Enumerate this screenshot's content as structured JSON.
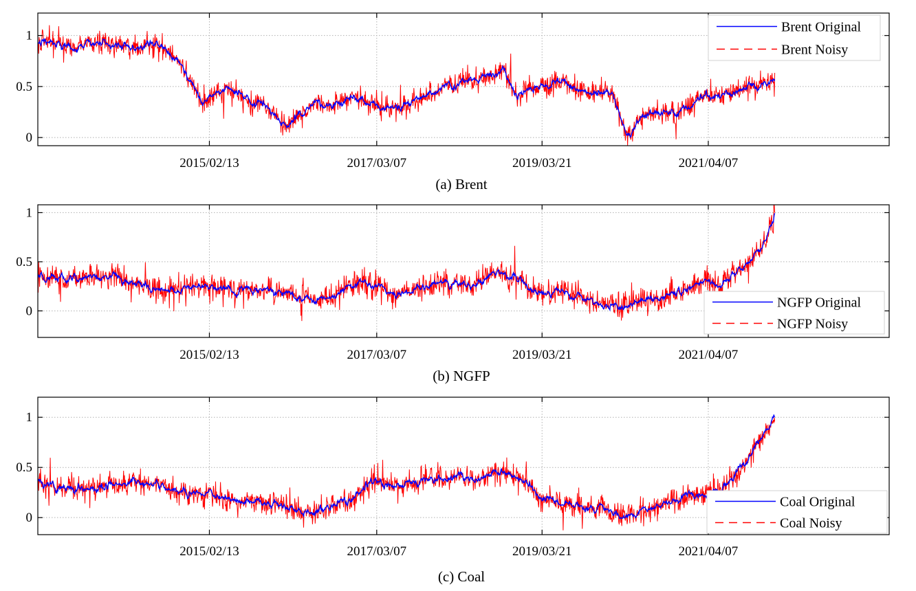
{
  "colors": {
    "original": "#0000ff",
    "noisy": "#ff0000",
    "grid": "#b0b0b0",
    "axes": "#000000",
    "background": "#ffffff"
  },
  "chart_data": [
    {
      "type": "line",
      "caption": "(a) Brent",
      "xlabel": "",
      "ylabel": "",
      "xlim": [
        "2013-01-02",
        "2023-06-30"
      ],
      "xticks": [
        "2015/02/13",
        "2017/03/07",
        "2019/03/21",
        "2021/04/07"
      ],
      "ylim": [
        -0.08,
        1.22
      ],
      "yticks": [
        0,
        0.5,
        1
      ],
      "ytick_labels": [
        "0",
        "0.5",
        "1"
      ],
      "grid": true,
      "legend": {
        "placement": "top-right",
        "entries": [
          "Brent Original",
          "Brent Noisy"
        ]
      },
      "noise_amplitude": 0.09,
      "series": [
        {
          "name": "Brent Original",
          "style": "solid",
          "color": "#0000ff",
          "x": [
            "2013-01-02",
            "2013-03-01",
            "2013-06-01",
            "2013-09-01",
            "2013-12-01",
            "2014-03-01",
            "2014-06-01",
            "2014-08-01",
            "2014-10-01",
            "2014-12-01",
            "2015-01-15",
            "2015-03-01",
            "2015-05-01",
            "2015-07-01",
            "2015-09-01",
            "2015-11-01",
            "2016-01-20",
            "2016-04-01",
            "2016-06-01",
            "2016-09-01",
            "2016-12-01",
            "2017-03-01",
            "2017-06-01",
            "2017-09-01",
            "2017-12-01",
            "2018-03-01",
            "2018-06-01",
            "2018-08-01",
            "2018-10-03",
            "2018-12-01",
            "2019-03-01",
            "2019-06-01",
            "2019-09-01",
            "2019-12-01",
            "2020-02-01",
            "2020-03-01",
            "2020-04-21",
            "2020-06-01",
            "2020-09-01",
            "2020-12-01",
            "2021-03-01",
            "2021-06-01",
            "2021-09-01",
            "2021-11-01",
            "2022-01-31"
          ],
          "y": [
            0.92,
            0.95,
            0.85,
            0.93,
            0.9,
            0.88,
            0.92,
            0.85,
            0.7,
            0.52,
            0.3,
            0.42,
            0.48,
            0.4,
            0.33,
            0.3,
            0.12,
            0.22,
            0.34,
            0.32,
            0.38,
            0.34,
            0.3,
            0.38,
            0.45,
            0.52,
            0.58,
            0.57,
            0.65,
            0.42,
            0.5,
            0.55,
            0.48,
            0.46,
            0.4,
            0.2,
            0.0,
            0.18,
            0.27,
            0.24,
            0.38,
            0.44,
            0.47,
            0.52,
            0.55
          ]
        },
        {
          "name": "Brent Noisy",
          "style": "dashed",
          "color": "#ff0000"
        }
      ]
    },
    {
      "type": "line",
      "caption": "(b) NGFP",
      "xlabel": "",
      "ylabel": "",
      "xlim": [
        "2013-01-02",
        "2023-06-30"
      ],
      "xticks": [
        "2015/02/13",
        "2017/03/07",
        "2019/03/21",
        "2021/04/07"
      ],
      "ylim": [
        -0.27,
        1.08
      ],
      "yticks": [
        0,
        0.5,
        1
      ],
      "ytick_labels": [
        "0",
        "0.5",
        "1"
      ],
      "grid": true,
      "legend": {
        "placement": "bottom-right",
        "entries": [
          "NGFP Original",
          "NGFP Noisy"
        ]
      },
      "noise_amplitude": 0.11,
      "series": [
        {
          "name": "NGFP Original",
          "style": "solid",
          "color": "#0000ff",
          "x": [
            "2013-01-02",
            "2013-06-01",
            "2013-12-01",
            "2014-03-01",
            "2014-06-01",
            "2014-09-01",
            "2015-01-01",
            "2015-06-01",
            "2015-12-01",
            "2016-03-01",
            "2016-06-01",
            "2016-09-01",
            "2016-12-01",
            "2017-03-01",
            "2017-06-01",
            "2017-09-01",
            "2017-12-01",
            "2018-03-01",
            "2018-06-01",
            "2018-09-01",
            "2018-12-01",
            "2019-03-01",
            "2019-06-01",
            "2019-09-01",
            "2019-12-01",
            "2020-03-01",
            "2020-06-01",
            "2020-09-01",
            "2020-12-01",
            "2021-03-01",
            "2021-06-01",
            "2021-09-01",
            "2021-11-01",
            "2021-12-20",
            "2022-01-31"
          ],
          "y": [
            0.35,
            0.33,
            0.36,
            0.32,
            0.25,
            0.18,
            0.25,
            0.22,
            0.2,
            0.14,
            0.12,
            0.16,
            0.28,
            0.3,
            0.18,
            0.22,
            0.3,
            0.25,
            0.3,
            0.4,
            0.32,
            0.16,
            0.18,
            0.15,
            0.08,
            0.04,
            0.08,
            0.14,
            0.2,
            0.3,
            0.28,
            0.4,
            0.55,
            0.7,
            1.0
          ]
        },
        {
          "name": "NGFP Noisy",
          "style": "dashed",
          "color": "#ff0000"
        }
      ]
    },
    {
      "type": "line",
      "caption": "(c) Coal",
      "xlabel": "",
      "ylabel": "",
      "xlim": [
        "2013-01-02",
        "2023-06-30"
      ],
      "xticks": [
        "2015/02/13",
        "2017/03/07",
        "2019/03/21",
        "2021/04/07"
      ],
      "ylim": [
        -0.17,
        1.2
      ],
      "yticks": [
        0,
        0.5,
        1
      ],
      "ytick_labels": [
        "0",
        "0.5",
        "1"
      ],
      "grid": true,
      "legend": {
        "placement": "bottom-right",
        "entries": [
          "Coal Original",
          "Coal Noisy"
        ]
      },
      "noise_amplitude": 0.1,
      "series": [
        {
          "name": "Coal Original",
          "style": "solid",
          "color": "#0000ff",
          "x": [
            "2013-01-02",
            "2013-06-01",
            "2013-12-01",
            "2014-04-01",
            "2014-09-01",
            "2015-01-01",
            "2015-06-01",
            "2015-12-01",
            "2016-04-01",
            "2016-08-01",
            "2016-12-01",
            "2017-03-01",
            "2017-06-01",
            "2017-09-01",
            "2017-12-01",
            "2018-03-01",
            "2018-06-01",
            "2018-09-01",
            "2018-12-01",
            "2019-03-01",
            "2019-06-01",
            "2019-09-01",
            "2019-12-01",
            "2020-03-01",
            "2020-06-01",
            "2020-09-01",
            "2020-12-01",
            "2021-03-01",
            "2021-06-01",
            "2021-09-01",
            "2021-11-01",
            "2021-12-20",
            "2022-01-31"
          ],
          "y": [
            0.35,
            0.28,
            0.3,
            0.34,
            0.28,
            0.25,
            0.18,
            0.12,
            0.05,
            0.1,
            0.22,
            0.35,
            0.3,
            0.38,
            0.4,
            0.42,
            0.38,
            0.46,
            0.42,
            0.22,
            0.15,
            0.12,
            0.1,
            0.03,
            0.07,
            0.12,
            0.18,
            0.22,
            0.25,
            0.5,
            0.7,
            0.85,
            1.0
          ]
        },
        {
          "name": "Coal Noisy",
          "style": "dashed",
          "color": "#ff0000"
        }
      ]
    }
  ]
}
